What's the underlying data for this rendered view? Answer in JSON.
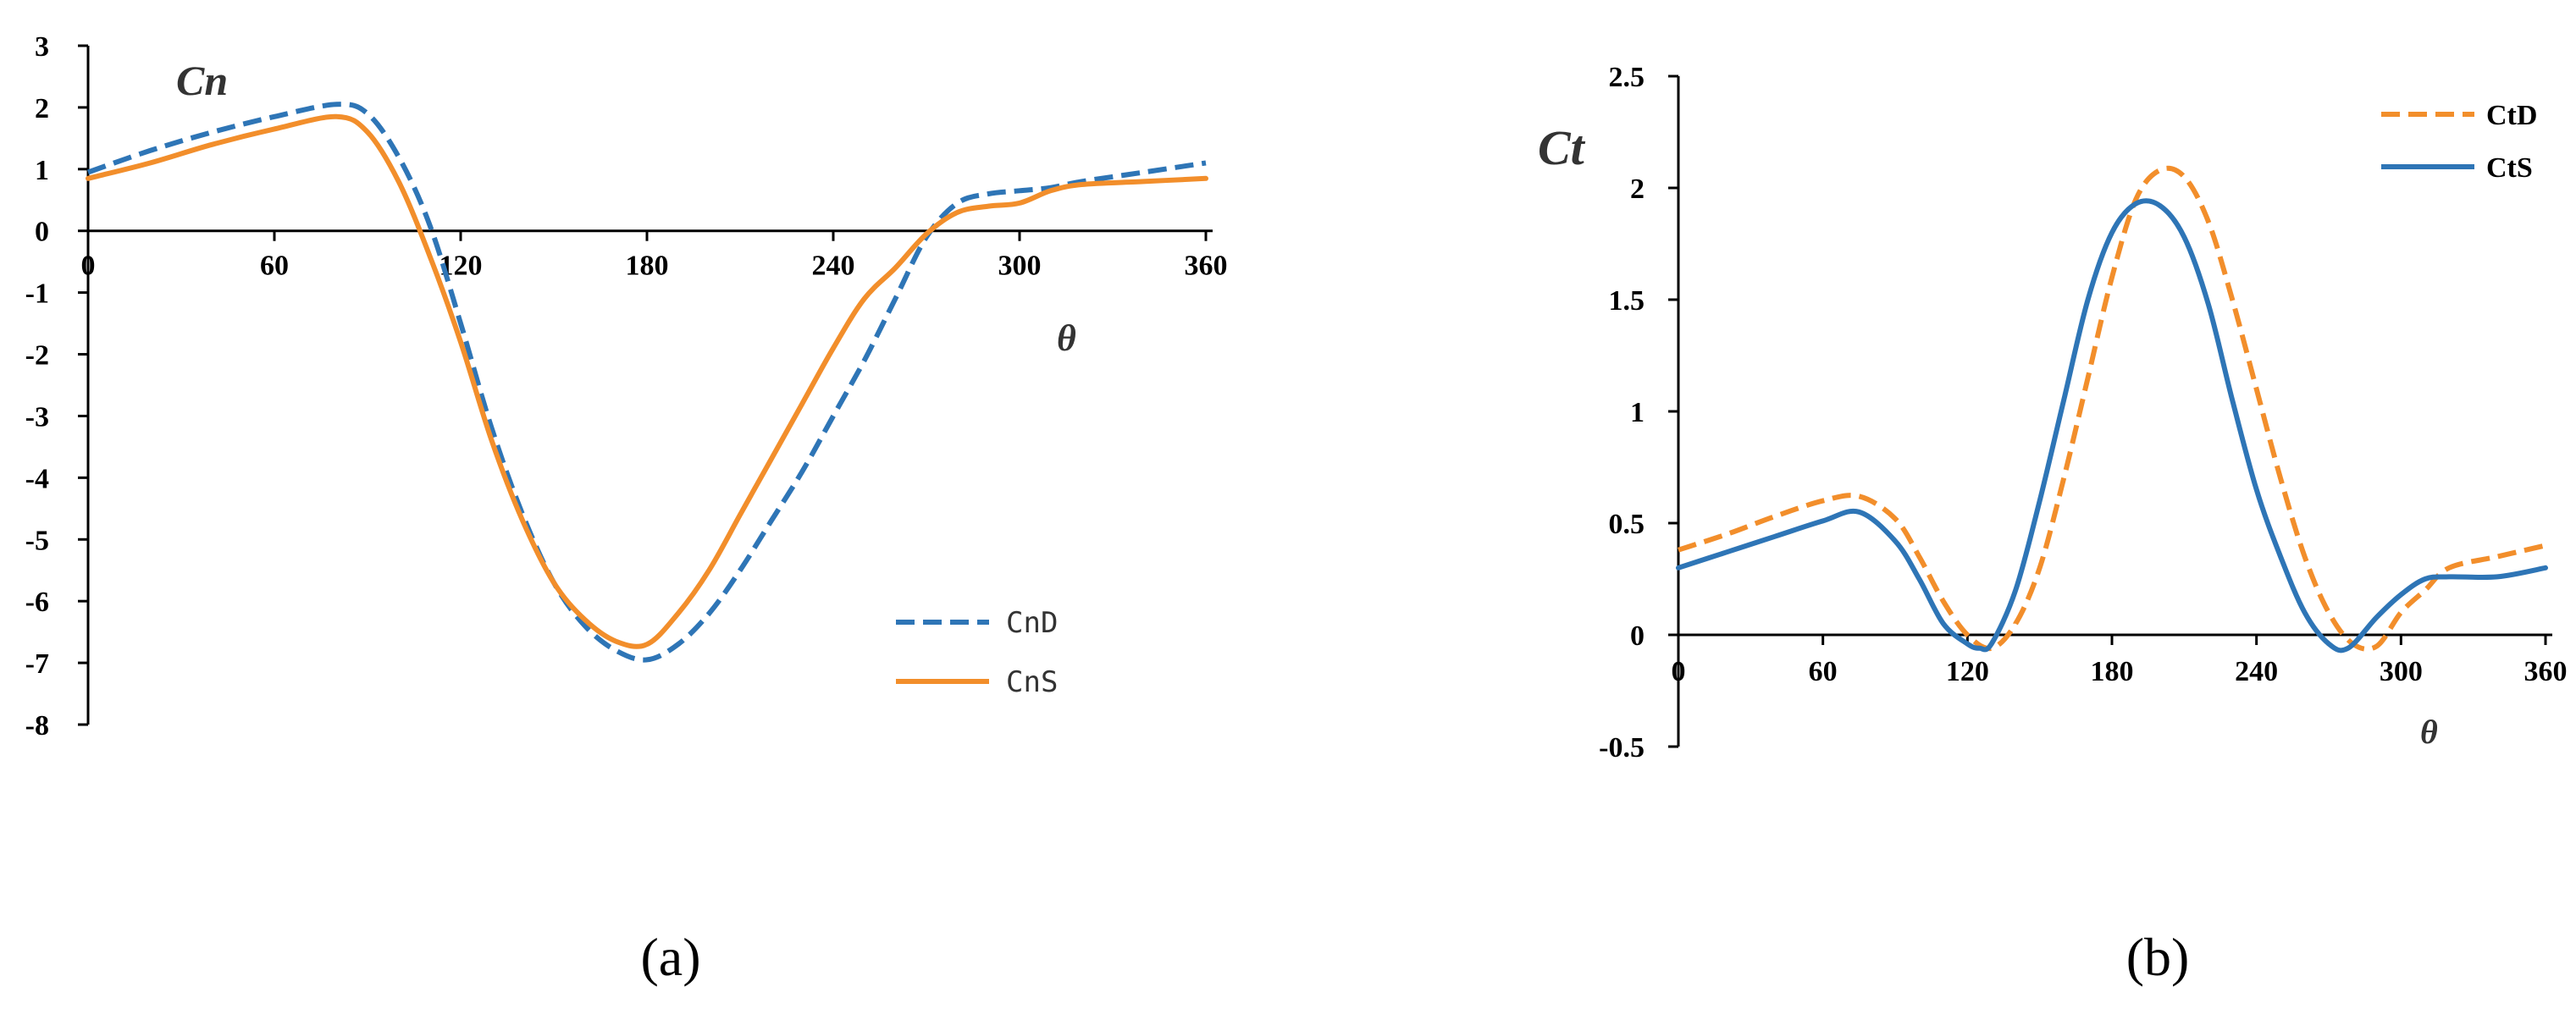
{
  "chart_data": [
    {
      "type": "line",
      "panel": "a",
      "caption": "(a)",
      "ylabel": "Cn",
      "xlabel": "θ",
      "xlim": [
        0,
        360
      ],
      "ylim": [
        -8,
        3
      ],
      "x_ticks": [
        0,
        60,
        120,
        180,
        240,
        300,
        360
      ],
      "y_ticks": [
        3,
        2,
        1,
        0,
        -1,
        -2,
        -3,
        -4,
        -5,
        -6,
        -7,
        -8
      ],
      "legend_position": "bottom-right",
      "grid": false,
      "series": [
        {
          "name": "CnD",
          "color": "#2E75B6",
          "style": "dashed",
          "x": [
            0,
            20,
            40,
            60,
            80,
            90,
            100,
            110,
            120,
            130,
            140,
            150,
            160,
            170,
            180,
            190,
            200,
            210,
            220,
            230,
            240,
            250,
            260,
            270,
            280,
            290,
            300,
            310,
            320,
            340,
            360
          ],
          "y": [
            0.95,
            1.3,
            1.6,
            1.85,
            2.05,
            1.9,
            1.2,
            0.1,
            -1.5,
            -3.2,
            -4.6,
            -5.7,
            -6.4,
            -6.8,
            -6.95,
            -6.7,
            -6.2,
            -5.5,
            -4.7,
            -3.9,
            -3.0,
            -2.1,
            -1.1,
            -0.1,
            0.45,
            0.6,
            0.65,
            0.7,
            0.8,
            0.95,
            1.1
          ]
        },
        {
          "name": "CnS",
          "color": "#F28E2B",
          "style": "solid",
          "x": [
            0,
            20,
            40,
            60,
            80,
            90,
            100,
            110,
            120,
            130,
            140,
            150,
            160,
            170,
            180,
            190,
            200,
            210,
            220,
            230,
            240,
            250,
            260,
            270,
            280,
            290,
            300,
            310,
            320,
            340,
            360
          ],
          "y": [
            0.85,
            1.1,
            1.4,
            1.65,
            1.85,
            1.6,
            0.8,
            -0.4,
            -1.8,
            -3.4,
            -4.7,
            -5.7,
            -6.3,
            -6.65,
            -6.7,
            -6.2,
            -5.5,
            -4.6,
            -3.7,
            -2.8,
            -1.9,
            -1.1,
            -0.6,
            -0.05,
            0.3,
            0.4,
            0.45,
            0.65,
            0.75,
            0.8,
            0.85
          ]
        }
      ]
    },
    {
      "type": "line",
      "panel": "b",
      "caption": "(b)",
      "ylabel": "Ct",
      "xlabel": "θ",
      "xlim": [
        0,
        360
      ],
      "ylim": [
        -0.5,
        2.5
      ],
      "x_ticks": [
        0,
        60,
        120,
        180,
        240,
        300,
        360
      ],
      "y_ticks": [
        2.5,
        2,
        1.5,
        1,
        0.5,
        0,
        -0.5
      ],
      "y_tick_labels": [
        "2.5",
        "2",
        "1.5",
        "1",
        "0.5",
        "0",
        "-0.5"
      ],
      "legend_position": "top-right",
      "grid": false,
      "series": [
        {
          "name": "CtD",
          "color": "#F28E2B",
          "style": "dashed",
          "x": [
            0,
            20,
            40,
            60,
            75,
            90,
            100,
            110,
            120,
            130,
            140,
            150,
            160,
            170,
            180,
            190,
            200,
            210,
            220,
            230,
            240,
            250,
            260,
            270,
            280,
            290,
            300,
            310,
            320,
            340,
            360
          ],
          "y": [
            0.38,
            0.45,
            0.53,
            0.6,
            0.62,
            0.52,
            0.35,
            0.15,
            0.0,
            -0.06,
            0.05,
            0.3,
            0.7,
            1.15,
            1.6,
            1.95,
            2.08,
            2.05,
            1.85,
            1.5,
            1.1,
            0.7,
            0.35,
            0.1,
            -0.04,
            -0.05,
            0.1,
            0.2,
            0.3,
            0.35,
            0.4
          ]
        },
        {
          "name": "CtS",
          "color": "#2E75B6",
          "style": "solid",
          "x": [
            0,
            20,
            40,
            60,
            75,
            90,
            100,
            110,
            120,
            125,
            130,
            140,
            150,
            160,
            170,
            180,
            190,
            200,
            210,
            220,
            230,
            240,
            250,
            260,
            270,
            278,
            290,
            300,
            310,
            320,
            340,
            360
          ],
          "y": [
            0.3,
            0.37,
            0.44,
            0.51,
            0.55,
            0.42,
            0.25,
            0.05,
            -0.04,
            -0.06,
            -0.04,
            0.2,
            0.6,
            1.05,
            1.5,
            1.8,
            1.93,
            1.92,
            1.78,
            1.48,
            1.05,
            0.65,
            0.35,
            0.1,
            -0.04,
            -0.06,
            0.08,
            0.18,
            0.25,
            0.26,
            0.26,
            0.3
          ]
        }
      ]
    }
  ]
}
